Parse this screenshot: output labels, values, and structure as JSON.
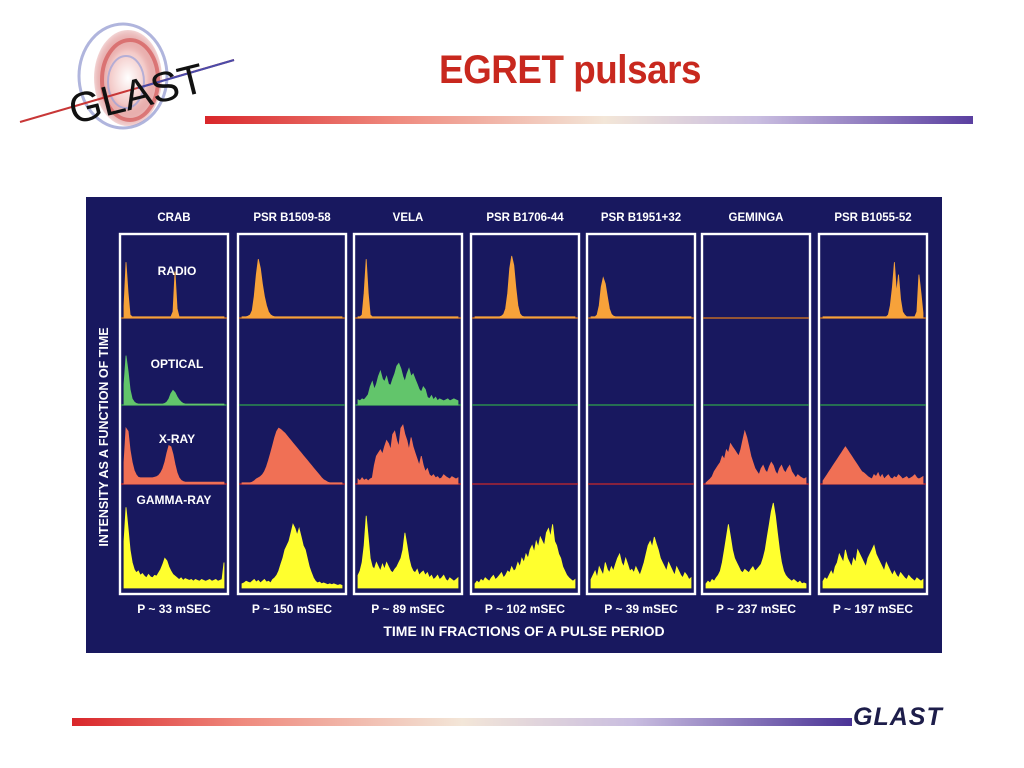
{
  "title": "EGRET pulsars",
  "logo_text": "GLAST",
  "footer_logo": "GLAST",
  "colors": {
    "title": "#c8281e",
    "figure_background": "#18185f",
    "radio": "#f7a23a",
    "optical": "#62c56b",
    "xray": "#f07055",
    "gamma": "#ffff2e",
    "radio_baseline": "#e07b1c",
    "optical_baseline": "#2ea24a",
    "xray_baseline": "#c8282a"
  },
  "chart_data": {
    "type": "line",
    "ylabel": "INTENSITY AS A FUNCTION OF TIME",
    "xlabel": "TIME IN FRACTIONS OF A PULSE PERIOD",
    "bands": [
      "RADIO",
      "OPTICAL",
      "X-RAY",
      "GAMMA-RAY"
    ],
    "pulsars": [
      {
        "name": "CRAB",
        "period": "P ~ 33 mSEC",
        "radio": [
          0.2,
          0.9,
          0.4,
          0.05,
          0.02,
          0.02,
          0.02,
          0.02,
          0.02,
          0.02,
          0.02,
          0.02,
          0.02,
          0.02,
          0.02,
          0.02,
          0.02,
          0.02,
          0.02,
          0.02,
          0.02,
          0.02,
          0.02,
          0.02,
          0.1,
          0.75,
          0.15,
          0.02,
          0.02,
          0.02,
          0.02,
          0.02,
          0.02,
          0.02,
          0.02,
          0.02,
          0.02,
          0.02,
          0.02,
          0.02,
          0.02,
          0.02,
          0.02,
          0.02,
          0.02,
          0.02,
          0.02,
          0.02,
          0.02,
          0.02
        ],
        "optical": [
          0.4,
          0.95,
          0.65,
          0.3,
          0.12,
          0.06,
          0.03,
          0.02,
          0.02,
          0.02,
          0.02,
          0.02,
          0.02,
          0.02,
          0.02,
          0.02,
          0.02,
          0.02,
          0.02,
          0.02,
          0.03,
          0.06,
          0.12,
          0.22,
          0.28,
          0.24,
          0.16,
          0.1,
          0.06,
          0.03,
          0.02,
          0.02,
          0.02,
          0.02,
          0.02,
          0.02,
          0.02,
          0.02,
          0.02,
          0.02,
          0.02,
          0.02,
          0.02,
          0.02,
          0.02,
          0.02,
          0.02,
          0.02,
          0.02,
          0.02
        ],
        "xray": [
          0.35,
          0.9,
          0.85,
          0.55,
          0.35,
          0.22,
          0.15,
          0.11,
          0.1,
          0.1,
          0.1,
          0.1,
          0.1,
          0.1,
          0.1,
          0.11,
          0.12,
          0.14,
          0.18,
          0.25,
          0.35,
          0.5,
          0.62,
          0.6,
          0.48,
          0.32,
          0.18,
          0.1,
          0.06,
          0.04,
          0.03,
          0.03,
          0.03,
          0.03,
          0.03,
          0.03,
          0.03,
          0.03,
          0.03,
          0.03,
          0.03,
          0.03,
          0.03,
          0.03,
          0.03,
          0.03,
          0.03,
          0.03,
          0.03,
          0.03
        ],
        "gamma": [
          0.55,
          0.95,
          0.7,
          0.45,
          0.3,
          0.22,
          0.18,
          0.2,
          0.15,
          0.17,
          0.14,
          0.12,
          0.16,
          0.13,
          0.12,
          0.15,
          0.14,
          0.18,
          0.22,
          0.28,
          0.35,
          0.32,
          0.25,
          0.2,
          0.16,
          0.14,
          0.12,
          0.1,
          0.12,
          0.09,
          0.11,
          0.1,
          0.09,
          0.1,
          0.08,
          0.1,
          0.09,
          0.08,
          0.1,
          0.09,
          0.08,
          0.09,
          0.1,
          0.08,
          0.09,
          0.1,
          0.08,
          0.09,
          0.1,
          0.3
        ]
      },
      {
        "name": "PSR B1509-58",
        "period": "P ~ 150 mSEC",
        "radio": [
          0.02,
          0.02,
          0.02,
          0.03,
          0.05,
          0.12,
          0.35,
          0.7,
          0.95,
          0.8,
          0.55,
          0.35,
          0.2,
          0.1,
          0.05,
          0.03,
          0.02,
          0.02,
          0.02,
          0.02,
          0.02,
          0.02,
          0.02,
          0.02,
          0.02,
          0.02,
          0.02,
          0.02,
          0.02,
          0.02,
          0.02,
          0.02,
          0.02,
          0.02,
          0.02,
          0.02,
          0.02,
          0.02,
          0.02,
          0.02,
          0.02,
          0.02,
          0.02,
          0.02,
          0.02,
          0.02,
          0.02,
          0.02,
          0.02,
          0.02
        ],
        "optical": [],
        "xray": [
          0.02,
          0.02,
          0.02,
          0.02,
          0.02,
          0.03,
          0.05,
          0.08,
          0.1,
          0.12,
          0.15,
          0.2,
          0.28,
          0.38,
          0.5,
          0.62,
          0.75,
          0.85,
          0.9,
          0.88,
          0.85,
          0.82,
          0.78,
          0.74,
          0.7,
          0.66,
          0.62,
          0.58,
          0.54,
          0.5,
          0.46,
          0.42,
          0.38,
          0.34,
          0.3,
          0.26,
          0.22,
          0.18,
          0.14,
          0.1,
          0.07,
          0.05,
          0.03,
          0.02,
          0.02,
          0.02,
          0.02,
          0.02,
          0.02,
          0.02
        ],
        "gamma": [
          0.05,
          0.06,
          0.08,
          0.07,
          0.06,
          0.08,
          0.1,
          0.07,
          0.09,
          0.06,
          0.08,
          0.1,
          0.07,
          0.08,
          0.06,
          0.1,
          0.12,
          0.15,
          0.2,
          0.28,
          0.35,
          0.45,
          0.5,
          0.55,
          0.65,
          0.75,
          0.7,
          0.62,
          0.7,
          0.6,
          0.5,
          0.45,
          0.35,
          0.25,
          0.18,
          0.12,
          0.08,
          0.06,
          0.07,
          0.05,
          0.06,
          0.05,
          0.04,
          0.05,
          0.04,
          0.05,
          0.04,
          0.03,
          0.04,
          0.03
        ]
      },
      {
        "name": "VELA",
        "period": "P ~ 89 mSEC",
        "radio": [
          0.02,
          0.02,
          0.05,
          0.4,
          0.95,
          0.4,
          0.05,
          0.02,
          0.02,
          0.02,
          0.02,
          0.02,
          0.02,
          0.02,
          0.02,
          0.02,
          0.02,
          0.02,
          0.02,
          0.02,
          0.02,
          0.02,
          0.02,
          0.02,
          0.02,
          0.02,
          0.02,
          0.02,
          0.02,
          0.02,
          0.02,
          0.02,
          0.02,
          0.02,
          0.02,
          0.02,
          0.02,
          0.02,
          0.02,
          0.02,
          0.02,
          0.02,
          0.02,
          0.02,
          0.02,
          0.02,
          0.02,
          0.02,
          0.02,
          0.02
        ],
        "optical": [
          0.1,
          0.08,
          0.12,
          0.1,
          0.15,
          0.2,
          0.35,
          0.45,
          0.3,
          0.4,
          0.55,
          0.65,
          0.5,
          0.45,
          0.55,
          0.4,
          0.38,
          0.5,
          0.6,
          0.75,
          0.8,
          0.7,
          0.55,
          0.45,
          0.6,
          0.7,
          0.55,
          0.6,
          0.5,
          0.4,
          0.3,
          0.25,
          0.35,
          0.3,
          0.15,
          0.12,
          0.18,
          0.1,
          0.15,
          0.08,
          0.12,
          0.1,
          0.08,
          0.1,
          0.12,
          0.08,
          0.1,
          0.12,
          0.1,
          0.08
        ],
        "xray": [
          0.08,
          0.05,
          0.1,
          0.06,
          0.08,
          0.05,
          0.08,
          0.1,
          0.3,
          0.45,
          0.5,
          0.55,
          0.48,
          0.6,
          0.7,
          0.65,
          0.55,
          0.8,
          0.85,
          0.7,
          0.6,
          0.9,
          0.95,
          0.8,
          0.7,
          0.55,
          0.75,
          0.6,
          0.5,
          0.4,
          0.3,
          0.45,
          0.3,
          0.2,
          0.25,
          0.15,
          0.12,
          0.15,
          0.1,
          0.12,
          0.08,
          0.1,
          0.15,
          0.12,
          0.1,
          0.08,
          0.12,
          0.1,
          0.08,
          0.1
        ],
        "gamma": [
          0.15,
          0.2,
          0.3,
          0.5,
          0.85,
          0.6,
          0.35,
          0.25,
          0.22,
          0.3,
          0.25,
          0.2,
          0.28,
          0.22,
          0.3,
          0.25,
          0.2,
          0.18,
          0.22,
          0.25,
          0.3,
          0.35,
          0.45,
          0.65,
          0.5,
          0.35,
          0.25,
          0.2,
          0.18,
          0.22,
          0.15,
          0.18,
          0.2,
          0.15,
          0.18,
          0.12,
          0.15,
          0.1,
          0.12,
          0.15,
          0.1,
          0.12,
          0.15,
          0.1,
          0.08,
          0.12,
          0.1,
          0.08,
          0.1,
          0.12
        ]
      },
      {
        "name": "PSR B1706-44",
        "period": "P ~ 102 mSEC",
        "radio": [
          0.02,
          0.02,
          0.02,
          0.02,
          0.02,
          0.02,
          0.02,
          0.02,
          0.02,
          0.02,
          0.02,
          0.02,
          0.02,
          0.03,
          0.06,
          0.15,
          0.4,
          0.8,
          1.0,
          0.85,
          0.5,
          0.2,
          0.07,
          0.03,
          0.02,
          0.02,
          0.02,
          0.02,
          0.02,
          0.02,
          0.02,
          0.02,
          0.02,
          0.02,
          0.02,
          0.02,
          0.02,
          0.02,
          0.02,
          0.02,
          0.02,
          0.02,
          0.02,
          0.02,
          0.02,
          0.02,
          0.02,
          0.02,
          0.02,
          0.02
        ],
        "optical": [],
        "xray": [],
        "gamma": [
          0.05,
          0.08,
          0.06,
          0.1,
          0.08,
          0.12,
          0.1,
          0.08,
          0.12,
          0.15,
          0.1,
          0.12,
          0.15,
          0.18,
          0.12,
          0.15,
          0.2,
          0.18,
          0.25,
          0.2,
          0.22,
          0.3,
          0.25,
          0.35,
          0.3,
          0.4,
          0.35,
          0.45,
          0.5,
          0.42,
          0.55,
          0.48,
          0.6,
          0.55,
          0.5,
          0.65,
          0.7,
          0.6,
          0.75,
          0.55,
          0.5,
          0.4,
          0.35,
          0.25,
          0.2,
          0.15,
          0.12,
          0.1,
          0.08,
          0.1
        ]
      },
      {
        "name": "PSR B1951+32",
        "period": "P ~ 39 mSEC",
        "radio": [
          0.02,
          0.02,
          0.02,
          0.05,
          0.2,
          0.5,
          0.65,
          0.55,
          0.35,
          0.15,
          0.06,
          0.03,
          0.02,
          0.02,
          0.02,
          0.02,
          0.02,
          0.02,
          0.02,
          0.02,
          0.02,
          0.02,
          0.02,
          0.02,
          0.02,
          0.02,
          0.02,
          0.02,
          0.02,
          0.02,
          0.02,
          0.02,
          0.02,
          0.02,
          0.02,
          0.02,
          0.02,
          0.02,
          0.02,
          0.02,
          0.02,
          0.02,
          0.02,
          0.02,
          0.02,
          0.02,
          0.02,
          0.02,
          0.02,
          0.02
        ],
        "optical": [],
        "xray": [],
        "gamma": [
          0.1,
          0.15,
          0.2,
          0.12,
          0.25,
          0.2,
          0.15,
          0.3,
          0.22,
          0.18,
          0.25,
          0.2,
          0.28,
          0.35,
          0.4,
          0.3,
          0.25,
          0.35,
          0.28,
          0.2,
          0.22,
          0.18,
          0.25,
          0.2,
          0.15,
          0.22,
          0.3,
          0.4,
          0.5,
          0.55,
          0.48,
          0.6,
          0.52,
          0.45,
          0.35,
          0.3,
          0.25,
          0.2,
          0.3,
          0.25,
          0.2,
          0.15,
          0.25,
          0.2,
          0.15,
          0.12,
          0.18,
          0.15,
          0.1,
          0.12
        ]
      },
      {
        "name": "GEMINGA",
        "period": "P ~  237 mSEC",
        "radio": [],
        "optical": [],
        "xray": [
          0.02,
          0.05,
          0.08,
          0.12,
          0.2,
          0.25,
          0.3,
          0.35,
          0.45,
          0.4,
          0.55,
          0.5,
          0.65,
          0.6,
          0.55,
          0.5,
          0.45,
          0.55,
          0.7,
          0.85,
          0.75,
          0.6,
          0.45,
          0.35,
          0.25,
          0.2,
          0.15,
          0.25,
          0.3,
          0.22,
          0.18,
          0.28,
          0.35,
          0.3,
          0.2,
          0.15,
          0.25,
          0.3,
          0.22,
          0.18,
          0.25,
          0.3,
          0.2,
          0.15,
          0.1,
          0.15,
          0.12,
          0.1,
          0.08,
          0.1
        ],
        "gamma": [
          0.05,
          0.08,
          0.06,
          0.1,
          0.08,
          0.12,
          0.15,
          0.2,
          0.3,
          0.45,
          0.6,
          0.75,
          0.6,
          0.45,
          0.35,
          0.3,
          0.25,
          0.2,
          0.18,
          0.22,
          0.2,
          0.18,
          0.22,
          0.25,
          0.2,
          0.22,
          0.25,
          0.28,
          0.35,
          0.45,
          0.6,
          0.75,
          0.9,
          1.0,
          0.85,
          0.65,
          0.45,
          0.3,
          0.2,
          0.15,
          0.12,
          0.1,
          0.08,
          0.1,
          0.08,
          0.06,
          0.08,
          0.05,
          0.06,
          0.05
        ]
      },
      {
        "name": "PSR B1055-52",
        "period": "P ~ 197 mSEC",
        "radio": [
          0.02,
          0.02,
          0.02,
          0.02,
          0.02,
          0.02,
          0.02,
          0.02,
          0.02,
          0.02,
          0.02,
          0.02,
          0.02,
          0.02,
          0.02,
          0.02,
          0.02,
          0.02,
          0.02,
          0.02,
          0.02,
          0.02,
          0.02,
          0.02,
          0.02,
          0.02,
          0.02,
          0.02,
          0.02,
          0.02,
          0.02,
          0.02,
          0.05,
          0.2,
          0.5,
          0.9,
          0.4,
          0.7,
          0.3,
          0.1,
          0.05,
          0.02,
          0.02,
          0.02,
          0.02,
          0.02,
          0.1,
          0.7,
          0.4,
          0.08
        ],
        "optical": [],
        "xray": [
          0.05,
          0.1,
          0.15,
          0.2,
          0.25,
          0.3,
          0.35,
          0.4,
          0.45,
          0.5,
          0.55,
          0.6,
          0.55,
          0.5,
          0.45,
          0.4,
          0.35,
          0.3,
          0.25,
          0.2,
          0.18,
          0.15,
          0.12,
          0.1,
          0.08,
          0.15,
          0.12,
          0.18,
          0.1,
          0.15,
          0.08,
          0.12,
          0.15,
          0.1,
          0.08,
          0.12,
          0.1,
          0.15,
          0.12,
          0.08,
          0.1,
          0.12,
          0.08,
          0.1,
          0.12,
          0.15,
          0.1,
          0.08,
          0.1,
          0.12
        ],
        "gamma": [
          0.08,
          0.12,
          0.1,
          0.15,
          0.2,
          0.15,
          0.25,
          0.3,
          0.4,
          0.35,
          0.3,
          0.45,
          0.35,
          0.3,
          0.25,
          0.35,
          0.3,
          0.45,
          0.4,
          0.35,
          0.3,
          0.25,
          0.35,
          0.4,
          0.45,
          0.5,
          0.4,
          0.35,
          0.3,
          0.25,
          0.2,
          0.3,
          0.25,
          0.2,
          0.15,
          0.2,
          0.15,
          0.12,
          0.18,
          0.15,
          0.12,
          0.1,
          0.15,
          0.12,
          0.1,
          0.08,
          0.12,
          0.1,
          0.08,
          0.1
        ]
      }
    ]
  }
}
